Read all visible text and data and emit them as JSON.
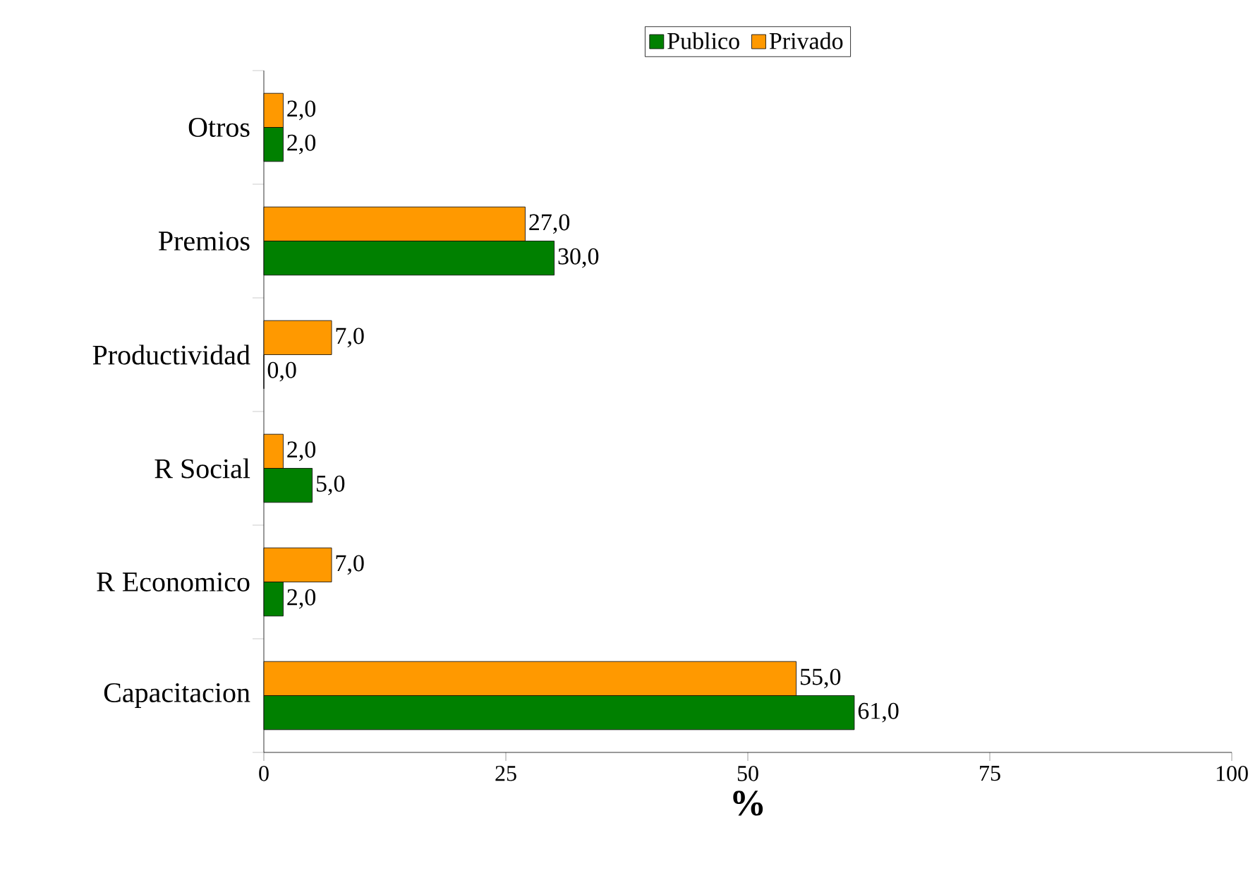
{
  "chart_data": {
    "type": "bar",
    "orientation": "horizontal",
    "xlabel": "%",
    "categories": [
      "Otros",
      "Premios",
      "Productividad",
      "R Social",
      "R Economico",
      "Capacitacion"
    ],
    "series": [
      {
        "name": "Publico",
        "color": "#008000",
        "values": [
          2,
          30,
          0,
          5,
          2,
          61
        ],
        "value_labels": [
          "2,0",
          "30,0",
          "0,0",
          "5,0",
          "2,0",
          "61,0"
        ]
      },
      {
        "name": "Privado",
        "color": "#ff9900",
        "values": [
          2,
          27,
          7,
          2,
          7,
          55
        ],
        "value_labels": [
          "2,0",
          "27,0",
          "7,0",
          "2,0",
          "7,0",
          "55,0"
        ]
      }
    ],
    "xlim": [
      0,
      100
    ],
    "xticks": [
      0,
      25,
      50,
      75,
      100
    ],
    "legend": "top"
  }
}
